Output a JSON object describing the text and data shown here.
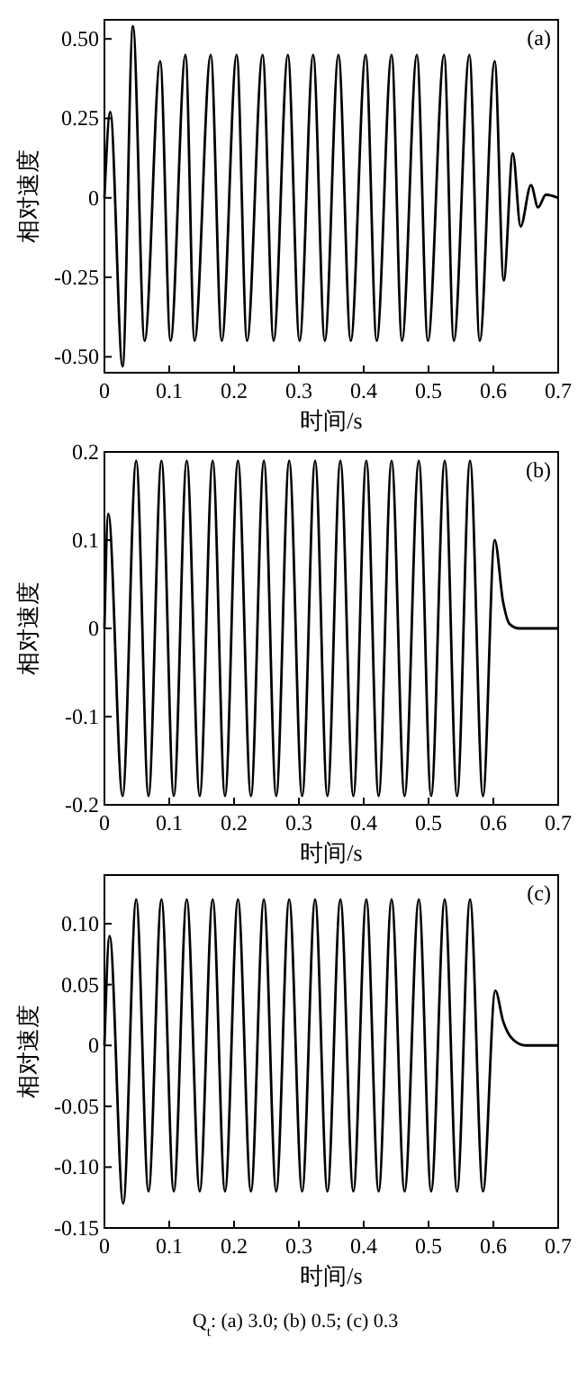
{
  "chart_data": [
    {
      "type": "line",
      "xlabel": "时间/s",
      "ylabel": "相对速度",
      "annotations": [
        "(a)"
      ],
      "xlim": [
        0,
        0.7
      ],
      "ylim": [
        -0.55,
        0.56
      ],
      "xticks": [
        0,
        0.1,
        0.2,
        0.3,
        0.4,
        0.5,
        0.6,
        0.7
      ],
      "yticks": [
        {
          "value": -0.5,
          "label": "-0.50"
        },
        {
          "value": -0.25,
          "label": "-0.25"
        },
        0,
        {
          "value": 0.25,
          "label": "0.25"
        },
        {
          "value": 0.5,
          "label": "0.50"
        }
      ],
      "grid": false,
      "marker": "none",
      "line_style": "solid",
      "series": [
        {
          "color": "#000000",
          "x": [
            0,
            0.009,
            0.028,
            0.044,
            0.062,
            0.086,
            0.102,
            0.125,
            0.139,
            0.164,
            0.181,
            0.204,
            0.22,
            0.244,
            0.261,
            0.283,
            0.301,
            0.322,
            0.34,
            0.361,
            0.38,
            0.403,
            0.42,
            0.443,
            0.459,
            0.482,
            0.499,
            0.524,
            0.539,
            0.563,
            0.579,
            0.602,
            0.616,
            0.63,
            0.642,
            0.658,
            0.669,
            0.681,
            0.7
          ],
          "values": [
            0,
            0.27,
            -0.53,
            0.54,
            -0.45,
            0.43,
            -0.45,
            0.45,
            -0.45,
            0.45,
            -0.45,
            0.45,
            -0.45,
            0.45,
            -0.45,
            0.45,
            -0.45,
            0.45,
            -0.45,
            0.45,
            -0.45,
            0.45,
            -0.45,
            0.45,
            -0.45,
            0.45,
            -0.45,
            0.45,
            -0.45,
            0.45,
            -0.45,
            0.43,
            -0.26,
            0.14,
            -0.09,
            0.04,
            -0.03,
            0.01,
            0
          ]
        }
      ]
    },
    {
      "type": "line",
      "xlabel": "时间/s",
      "ylabel": "相对速度",
      "annotations": [
        "(b)"
      ],
      "xlim": [
        0,
        0.7
      ],
      "ylim": [
        -0.2,
        0.2
      ],
      "xticks": [
        0,
        0.1,
        0.2,
        0.3,
        0.4,
        0.5,
        0.6,
        0.7
      ],
      "yticks": [
        -0.2,
        -0.1,
        0,
        0.1,
        0.2
      ],
      "grid": false,
      "marker": "none",
      "line_style": "solid",
      "series": [
        {
          "color": "#000000",
          "x": [
            0,
            0.006,
            0.028,
            0.049,
            0.068,
            0.088,
            0.107,
            0.127,
            0.147,
            0.167,
            0.186,
            0.206,
            0.226,
            0.246,
            0.265,
            0.285,
            0.305,
            0.325,
            0.344,
            0.364,
            0.384,
            0.404,
            0.423,
            0.443,
            0.463,
            0.485,
            0.504,
            0.525,
            0.544,
            0.564,
            0.584,
            0.602,
            0.615,
            0.625,
            0.64,
            0.7
          ],
          "values": [
            0,
            0.13,
            -0.19,
            0.19,
            -0.19,
            0.19,
            -0.19,
            0.19,
            -0.19,
            0.19,
            -0.19,
            0.19,
            -0.19,
            0.19,
            -0.19,
            0.19,
            -0.19,
            0.19,
            -0.19,
            0.19,
            -0.19,
            0.19,
            -0.19,
            0.19,
            -0.19,
            0.19,
            -0.19,
            0.19,
            -0.19,
            0.19,
            -0.19,
            0.1,
            0.03,
            0.005,
            0,
            0
          ]
        }
      ]
    },
    {
      "type": "line",
      "xlabel": "时间/s",
      "ylabel": "相对速度",
      "annotations": [
        "(c)",
        "Q$_{t}$: (a) 3.0; (b) 0.5; (c) 0.3"
      ],
      "xlim": [
        0,
        0.7
      ],
      "ylim": [
        -0.15,
        0.14
      ],
      "xticks": [
        0,
        0.1,
        0.2,
        0.3,
        0.4,
        0.5,
        0.6,
        0.7
      ],
      "yticks": [
        {
          "value": -0.15,
          "label": "-0.15"
        },
        {
          "value": -0.1,
          "label": "-0.10"
        },
        -0.05,
        0,
        0.05,
        {
          "value": 0.1,
          "label": "0.10"
        }
      ],
      "grid": false,
      "marker": "none",
      "line_style": "solid",
      "series": [
        {
          "color": "#000000",
          "x": [
            0,
            0.008,
            0.029,
            0.049,
            0.068,
            0.088,
            0.107,
            0.127,
            0.147,
            0.167,
            0.186,
            0.206,
            0.226,
            0.246,
            0.265,
            0.285,
            0.305,
            0.325,
            0.344,
            0.364,
            0.384,
            0.404,
            0.423,
            0.443,
            0.463,
            0.485,
            0.504,
            0.525,
            0.544,
            0.564,
            0.584,
            0.603,
            0.615,
            0.63,
            0.65,
            0.7
          ],
          "values": [
            0,
            0.09,
            -0.13,
            0.12,
            -0.12,
            0.12,
            -0.12,
            0.12,
            -0.12,
            0.12,
            -0.12,
            0.12,
            -0.12,
            0.12,
            -0.12,
            0.12,
            -0.12,
            0.12,
            -0.12,
            0.12,
            -0.12,
            0.12,
            -0.12,
            0.12,
            -0.12,
            0.12,
            -0.12,
            0.12,
            -0.12,
            0.12,
            -0.12,
            0.045,
            0.02,
            0.005,
            0,
            0
          ]
        }
      ]
    }
  ]
}
